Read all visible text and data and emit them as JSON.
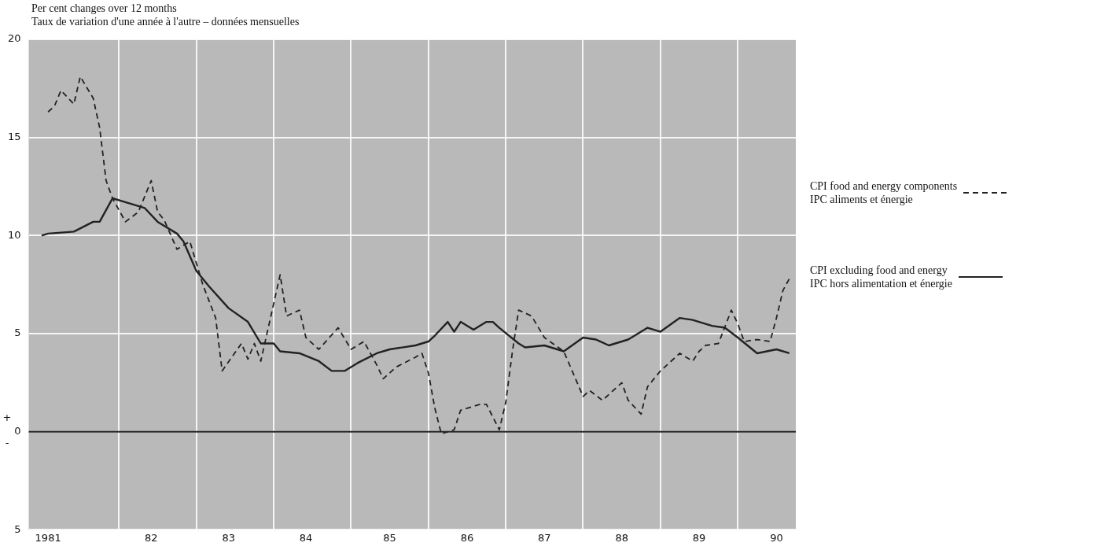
{
  "chart_data": {
    "type": "line",
    "title": "Per cent changes over 12 months",
    "subtitle": "Taux de variation d'une année à l'autre – données mensuelles",
    "annotations": [
      "+",
      "-"
    ],
    "xlim": [
      "1980-11",
      "1990-10"
    ],
    "xticks": [
      {
        "value": "1981-02",
        "label": "1981"
      },
      {
        "value": "1982-01",
        "label": null
      },
      {
        "value": "1982-06",
        "label": "82"
      },
      {
        "value": "1983-01",
        "label": null
      },
      {
        "value": "1983-06",
        "label": "83"
      },
      {
        "value": "1984-01",
        "label": null
      },
      {
        "value": "1984-06",
        "label": "84"
      },
      {
        "value": "1985-01",
        "label": null
      },
      {
        "value": "1985-07",
        "label": "85"
      },
      {
        "value": "1986-01",
        "label": null
      },
      {
        "value": "1986-07",
        "label": "86"
      },
      {
        "value": "1987-01",
        "label": null
      },
      {
        "value": "1987-07",
        "label": "87"
      },
      {
        "value": "1988-01",
        "label": null
      },
      {
        "value": "1988-07",
        "label": "88"
      },
      {
        "value": "1989-01",
        "label": null
      },
      {
        "value": "1989-07",
        "label": "89"
      },
      {
        "value": "1990-01",
        "label": null
      },
      {
        "value": "1990-07",
        "label": "90"
      }
    ],
    "ylim": [
      -5,
      20
    ],
    "yticks": [
      {
        "value": -5,
        "label": "5"
      },
      0,
      5,
      10,
      15,
      20
    ],
    "grid": true,
    "legend": "right",
    "marker": "none",
    "ref_lines": [
      {
        "axis": "y",
        "value": 0,
        "color": "#222222",
        "line_style": "solid"
      }
    ],
    "series": [
      {
        "name": "CPI food and energy components\nIPC aliments et énergie",
        "color": "#222222",
        "line_style": "dashed",
        "x": [
          "1981-02",
          "1981-03",
          "1981-04",
          "1981-06",
          "1981-07",
          "1981-09",
          "1981-10",
          "1981-11",
          "1981-12",
          "1982-02",
          "1982-04",
          "1982-06",
          "1982-07",
          "1982-08",
          "1982-10",
          "1982-12",
          "1983-02",
          "1983-04",
          "1983-05",
          "1983-08",
          "1983-09",
          "1983-10",
          "1983-11",
          "1984-02",
          "1984-03",
          "1984-05",
          "1984-06",
          "1984-08",
          "1984-11",
          "1985-01",
          "1985-03",
          "1985-05",
          "1985-06",
          "1985-08",
          "1985-11",
          "1985-12",
          "1986-01",
          "1986-02",
          "1986-03",
          "1986-05",
          "1986-06",
          "1986-09",
          "1986-10",
          "1986-12",
          "1987-01",
          "1987-02",
          "1987-03",
          "1987-05",
          "1987-07",
          "1987-10",
          "1988-01",
          "1988-02",
          "1988-04",
          "1988-07",
          "1988-08",
          "1988-10",
          "1988-11",
          "1989-01",
          "1989-04",
          "1989-06",
          "1989-07",
          "1989-08",
          "1989-10",
          "1989-12",
          "1990-01",
          "1990-02",
          "1990-04",
          "1990-06",
          "1990-07",
          "1990-08",
          "1990-09"
        ],
        "values": [
          16.3,
          16.6,
          17.4,
          16.7,
          18.1,
          17.0,
          15.5,
          12.8,
          11.9,
          10.7,
          11.2,
          12.8,
          11.2,
          10.8,
          9.3,
          9.7,
          7.5,
          5.8,
          3.1,
          4.5,
          3.7,
          4.5,
          3.6,
          8.0,
          5.9,
          6.2,
          4.8,
          4.2,
          5.3,
          4.2,
          4.6,
          3.4,
          2.7,
          3.3,
          3.8,
          4.0,
          3.0,
          1.2,
          -0.1,
          0.1,
          1.1,
          1.4,
          1.4,
          0.1,
          1.5,
          4.0,
          6.2,
          5.9,
          4.8,
          4.1,
          1.8,
          2.1,
          1.6,
          2.5,
          1.6,
          0.9,
          2.3,
          3.1,
          4.0,
          3.6,
          4.1,
          4.4,
          4.5,
          6.2,
          5.5,
          4.6,
          4.7,
          4.6,
          5.8,
          7.2,
          7.8
        ]
      },
      {
        "name": "CPI excluding food and energy\nIPC hors alimentation et énergie",
        "color": "#222222",
        "line_style": "solid",
        "x": [
          "1981-01",
          "1981-02",
          "1981-06",
          "1981-09",
          "1981-10",
          "1981-12",
          "1982-03",
          "1982-05",
          "1982-07",
          "1982-10",
          "1982-11",
          "1983-01",
          "1983-03",
          "1983-06",
          "1983-09",
          "1983-11",
          "1984-01",
          "1984-02",
          "1984-05",
          "1984-08",
          "1984-10",
          "1984-12",
          "1985-02",
          "1985-05",
          "1985-07",
          "1985-11",
          "1986-01",
          "1986-02",
          "1986-04",
          "1986-05",
          "1986-06",
          "1986-08",
          "1986-10",
          "1986-11",
          "1986-12",
          "1987-03",
          "1987-04",
          "1987-07",
          "1987-10",
          "1988-01",
          "1988-03",
          "1988-05",
          "1988-08",
          "1988-11",
          "1989-01",
          "1989-04",
          "1989-06",
          "1989-09",
          "1989-11",
          "1990-01",
          "1990-04",
          "1990-07",
          "1990-09"
        ],
        "values": [
          10.0,
          10.1,
          10.2,
          10.7,
          10.7,
          11.9,
          11.6,
          11.4,
          10.7,
          10.1,
          9.7,
          8.2,
          7.4,
          6.3,
          5.6,
          4.5,
          4.5,
          4.1,
          4.0,
          3.6,
          3.1,
          3.1,
          3.5,
          4.0,
          4.2,
          4.4,
          4.6,
          4.9,
          5.6,
          5.1,
          5.6,
          5.2,
          5.6,
          5.6,
          5.3,
          4.5,
          4.3,
          4.4,
          4.1,
          4.8,
          4.7,
          4.4,
          4.7,
          5.3,
          5.1,
          5.8,
          5.7,
          5.4,
          5.3,
          4.8,
          4.0,
          4.2,
          4.0
        ]
      }
    ]
  }
}
